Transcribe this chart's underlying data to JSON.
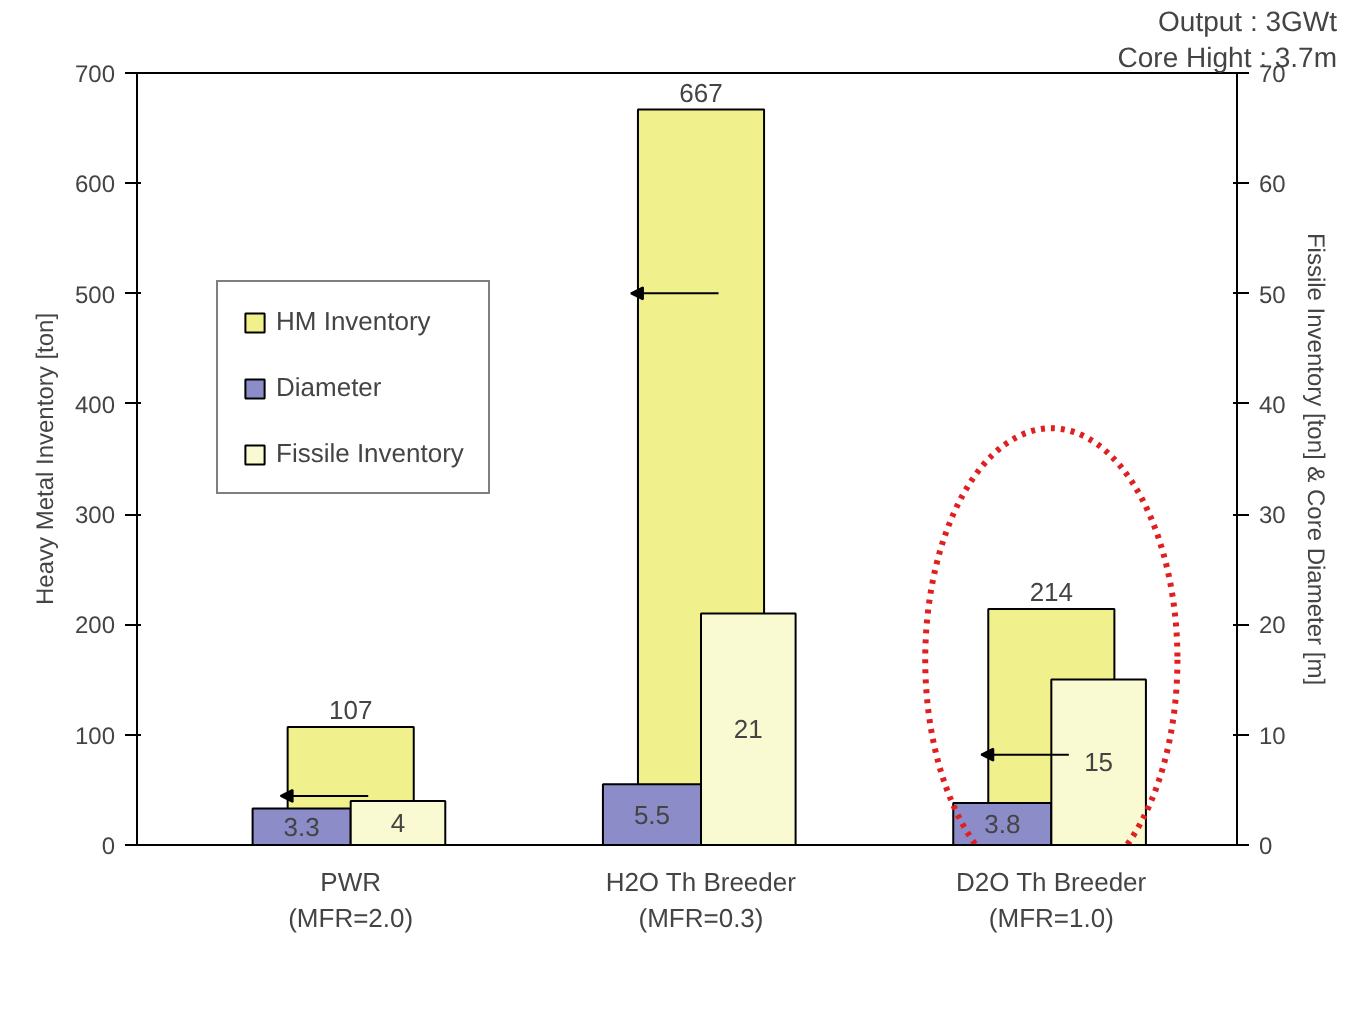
{
  "chart_data": {
    "type": "bar",
    "categories": [
      "PWR\n(MFR=2.0)",
      "H2O Th Breeder\n(MFR=0.3)",
      "D2O Th Breeder\n(MFR=1.0)"
    ],
    "series": [
      {
        "name": "HM Inventory",
        "color": "#f0f08c",
        "values": [
          107,
          667,
          214
        ],
        "axis": "y"
      },
      {
        "name": "Diameter",
        "color": "#8c8cc8",
        "values": [
          3.3,
          5.5,
          3.8
        ],
        "axis": "y2"
      },
      {
        "name": "Fissile Inventory",
        "color": "#fafad2",
        "values": [
          4,
          21,
          15
        ],
        "axis": "y2"
      }
    ],
    "ylabel": "Heavy Metal Inventory [ton]",
    "y2label": "Fissile Inventory [ton] & Core Diameter [m]",
    "ylim": [
      0,
      700
    ],
    "yticks": [
      0,
      100,
      200,
      300,
      400,
      500,
      600,
      700
    ],
    "y2lim": [
      0,
      70
    ],
    "y2ticks": [
      0,
      10,
      20,
      30,
      40,
      50,
      60,
      70
    ],
    "annotations": [
      "Output : 3GWt",
      "Core Hight : 3.7m"
    ],
    "data_labels": true,
    "legend": "top left",
    "grid": false
  }
}
